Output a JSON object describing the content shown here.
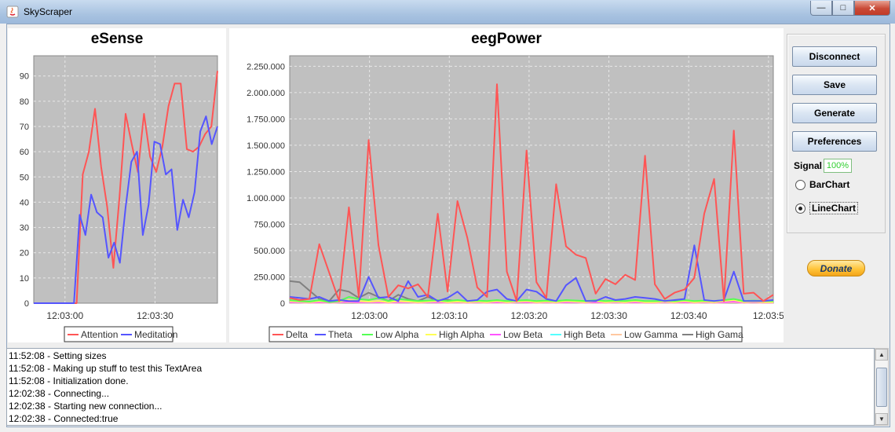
{
  "window": {
    "title": "SkyScraper",
    "controls": [
      "minimize",
      "maximize",
      "close"
    ]
  },
  "esense": {
    "title": "eSense",
    "y_ticks": [
      "0",
      "10",
      "20",
      "30",
      "40",
      "50",
      "60",
      "70",
      "80",
      "90"
    ],
    "x_ticks": [
      "12:03:00",
      "12:03:30"
    ],
    "legend": [
      {
        "name": "Attention",
        "color": "#ff5555"
      },
      {
        "name": "Meditation",
        "color": "#5555ff"
      }
    ]
  },
  "eegpower": {
    "title": "eegPower",
    "y_ticks": [
      "0",
      "250.000",
      "500.000",
      "750.000",
      "1.000.000",
      "1.250.000",
      "1.500.000",
      "1.750.000",
      "2.000.000",
      "2.250.000"
    ],
    "x_ticks": [
      "12:03:00",
      "12:03:10",
      "12:03:20",
      "12:03:30",
      "12:03:40",
      "12:03:5"
    ],
    "legend": [
      {
        "name": "Delta",
        "color": "#ff5555"
      },
      {
        "name": "Theta",
        "color": "#5555ff"
      },
      {
        "name": "Low Alpha",
        "color": "#55ff55"
      },
      {
        "name": "High Alpha",
        "color": "#ffff55"
      },
      {
        "name": "Low Beta",
        "color": "#ff55ff"
      },
      {
        "name": "High Beta",
        "color": "#55ffff"
      },
      {
        "name": "Low Gamma",
        "color": "#ffc8a0"
      },
      {
        "name": "High Gama",
        "color": "#808080"
      }
    ]
  },
  "sidebar": {
    "buttons": [
      "Disconnect",
      "Save",
      "Generate",
      "Preferences"
    ],
    "signal_label": "Signal",
    "signal_value": "100%",
    "radios": [
      {
        "label": "BarChart",
        "selected": false
      },
      {
        "label": "LineChart",
        "selected": true
      }
    ],
    "donate": "Donate"
  },
  "log": {
    "lines": [
      "11:52:08 - Setting sizes",
      "11:52:08 - Making up stuff to test this TextArea",
      "11:52:08 - Initialization done.",
      "12:02:38 - Connecting...",
      "12:02:38 - Starting new connection...",
      "12:02:38 - Connected:true"
    ]
  },
  "chart_data": [
    {
      "type": "line",
      "title": "eSense",
      "ylim": [
        0,
        98
      ],
      "series": [
        {
          "name": "Attention",
          "values": [
            0,
            0,
            0,
            0,
            0,
            0,
            0,
            0,
            51,
            60,
            77,
            54,
            38,
            14,
            42,
            75,
            63,
            52,
            75,
            58,
            52,
            62,
            78,
            87,
            87,
            61,
            60,
            62,
            67,
            70,
            92
          ]
        },
        {
          "name": "Meditation",
          "values": [
            0,
            0,
            0,
            0,
            0,
            0,
            0,
            0,
            35,
            27,
            43,
            36,
            34,
            18,
            24,
            16,
            38,
            56,
            60,
            27,
            39,
            64,
            63,
            51,
            53,
            29,
            41,
            34,
            44,
            68,
            74,
            63,
            70
          ]
        }
      ]
    },
    {
      "type": "line",
      "title": "eegPower",
      "ylim": [
        0,
        2350000
      ],
      "series": [
        {
          "name": "Delta",
          "values": [
            50000,
            30000,
            40000,
            560000,
            290000,
            20000,
            910000,
            60000,
            1550000,
            550000,
            60000,
            170000,
            140000,
            180000,
            60000,
            850000,
            110000,
            970000,
            620000,
            150000,
            60000,
            2080000,
            300000,
            20000,
            1450000,
            200000,
            50000,
            1130000,
            540000,
            460000,
            430000,
            90000,
            230000,
            180000,
            270000,
            220000,
            1400000,
            180000,
            40000,
            100000,
            130000,
            240000,
            850000,
            1180000,
            20000,
            1640000,
            90000,
            100000,
            20000,
            80000
          ]
        },
        {
          "name": "Theta",
          "values": [
            60000,
            50000,
            40000,
            60000,
            20000,
            30000,
            20000,
            20000,
            250000,
            50000,
            60000,
            20000,
            210000,
            60000,
            80000,
            20000,
            50000,
            110000,
            20000,
            30000,
            110000,
            130000,
            40000,
            20000,
            130000,
            110000,
            40000,
            20000,
            170000,
            240000,
            20000,
            20000,
            60000,
            30000,
            40000,
            60000,
            50000,
            40000,
            20000,
            30000,
            40000,
            550000,
            30000,
            20000,
            30000,
            300000,
            20000,
            20000,
            20000,
            30000
          ]
        },
        {
          "name": "Low Alpha",
          "values": [
            30000,
            20000,
            15000,
            30000,
            10000,
            20000,
            60000,
            40000,
            30000,
            50000,
            20000,
            40000,
            30000,
            20000,
            25000,
            30000,
            20000,
            30000,
            20000,
            25000,
            20000,
            30000,
            20000,
            25000,
            30000,
            20000,
            25000,
            20000,
            30000,
            25000,
            20000,
            30000,
            20000,
            25000,
            20000,
            30000,
            20000,
            20000,
            25000,
            20000,
            30000,
            20000,
            25000,
            20000,
            30000,
            40000,
            20000,
            25000,
            20000,
            20000
          ]
        },
        {
          "name": "High Alpha",
          "values": [
            20000,
            15000,
            10000,
            20000,
            10000,
            15000,
            30000,
            20000,
            15000,
            20000,
            10000,
            20000,
            15000,
            10000,
            15000,
            20000,
            10000,
            15000,
            10000,
            15000,
            10000,
            20000,
            10000,
            15000,
            20000,
            10000,
            15000,
            10000,
            20000,
            15000,
            10000,
            20000,
            10000,
            15000,
            10000,
            20000,
            10000,
            10000,
            15000,
            10000,
            20000,
            10000,
            15000,
            10000,
            20000,
            30000,
            10000,
            15000,
            10000,
            10000
          ]
        },
        {
          "name": "Low Beta",
          "values": [
            10000,
            10000,
            5000,
            10000,
            5000,
            10000,
            15000,
            10000,
            10000,
            10000,
            5000,
            10000,
            10000,
            5000,
            10000,
            10000,
            5000,
            10000,
            5000,
            10000,
            5000,
            10000,
            5000,
            10000,
            10000,
            5000,
            10000,
            5000,
            10000,
            10000,
            5000,
            10000,
            5000,
            10000,
            5000,
            10000,
            5000,
            5000,
            10000,
            5000,
            10000,
            5000,
            10000,
            5000,
            10000,
            15000,
            5000,
            10000,
            5000,
            5000
          ]
        },
        {
          "name": "High Beta",
          "values": [
            15000,
            10000,
            8000,
            12000,
            8000,
            10000,
            20000,
            12000,
            10000,
            15000,
            8000,
            12000,
            10000,
            8000,
            10000,
            12000,
            8000,
            10000,
            8000,
            10000,
            8000,
            12000,
            8000,
            10000,
            12000,
            8000,
            10000,
            8000,
            12000,
            10000,
            8000,
            12000,
            8000,
            10000,
            8000,
            12000,
            8000,
            8000,
            10000,
            8000,
            12000,
            8000,
            10000,
            8000,
            12000,
            20000,
            8000,
            10000,
            8000,
            8000
          ]
        },
        {
          "name": "Low Gamma",
          "values": [
            5000,
            5000,
            3000,
            5000,
            3000,
            5000,
            8000,
            5000,
            5000,
            5000,
            3000,
            5000,
            5000,
            3000,
            5000,
            5000,
            3000,
            5000,
            3000,
            5000,
            3000,
            5000,
            3000,
            5000,
            5000,
            3000,
            5000,
            3000,
            5000,
            5000,
            3000,
            5000,
            3000,
            5000,
            3000,
            5000,
            3000,
            3000,
            5000,
            3000,
            5000,
            3000,
            5000,
            3000,
            5000,
            8000,
            3000,
            5000,
            3000,
            3000
          ]
        },
        {
          "name": "High Gama",
          "values": [
            210000,
            200000,
            120000,
            40000,
            20000,
            130000,
            110000,
            50000,
            100000,
            60000,
            20000,
            80000,
            40000,
            20000,
            60000,
            20000,
            30000,
            20000,
            10000,
            20000,
            10000,
            20000,
            10000,
            15000,
            20000,
            10000,
            15000,
            10000,
            20000,
            15000,
            10000,
            20000,
            10000,
            15000,
            10000,
            20000,
            10000,
            10000,
            15000,
            10000,
            20000,
            10000,
            15000,
            10000,
            20000,
            20000,
            10000,
            15000,
            10000,
            10000
          ]
        }
      ]
    }
  ]
}
